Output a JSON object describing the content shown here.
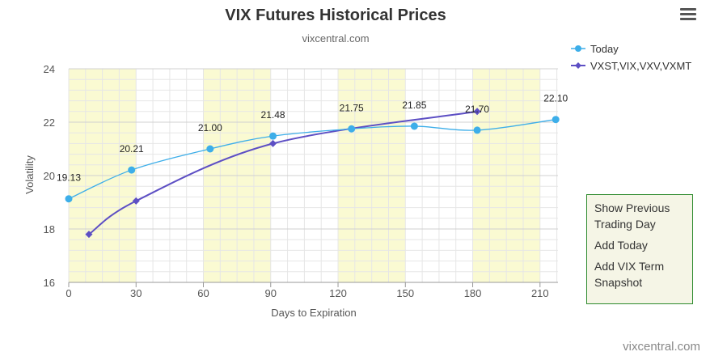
{
  "chart_data": {
    "type": "line",
    "title": "VIX Futures Historical Prices",
    "subtitle": "vixcentral.com",
    "xlabel": "Days to Expiration",
    "ylabel": "Volatility",
    "xlim": [
      0,
      218
    ],
    "ylim": [
      16,
      24
    ],
    "x_ticks": [
      0,
      30,
      60,
      90,
      120,
      150,
      180,
      210
    ],
    "y_ticks": [
      16,
      18,
      20,
      22,
      24
    ],
    "shaded_bands": [
      [
        0,
        30
      ],
      [
        60,
        90
      ],
      [
        120,
        150
      ],
      [
        180,
        210
      ]
    ],
    "series": [
      {
        "name": "Today",
        "color": "#3daee9",
        "marker": "circle",
        "x": [
          0,
          28,
          63,
          91,
          126,
          154,
          182,
          217
        ],
        "values": [
          19.13,
          20.21,
          21.0,
          21.48,
          21.75,
          21.85,
          21.7,
          22.1
        ],
        "labels": [
          "19.13",
          "20.21",
          "21.00",
          "21.48",
          "21.75",
          "21.85",
          "21.70",
          "22.10"
        ]
      },
      {
        "name": "VXST,VIX,VXV,VXMT",
        "color": "#5d4fc4",
        "marker": "diamond",
        "x": [
          9,
          30,
          91,
          182
        ],
        "values": [
          17.8,
          19.05,
          21.2,
          22.4
        ]
      }
    ],
    "legend_position": "top-right",
    "grid": true
  },
  "menu": {
    "items": [
      "Show Previous Trading Day",
      "Add Today",
      "Add VIX Term Snapshot"
    ]
  },
  "credit": "vixcentral.com",
  "menu_icon": "hamburger-menu-icon"
}
